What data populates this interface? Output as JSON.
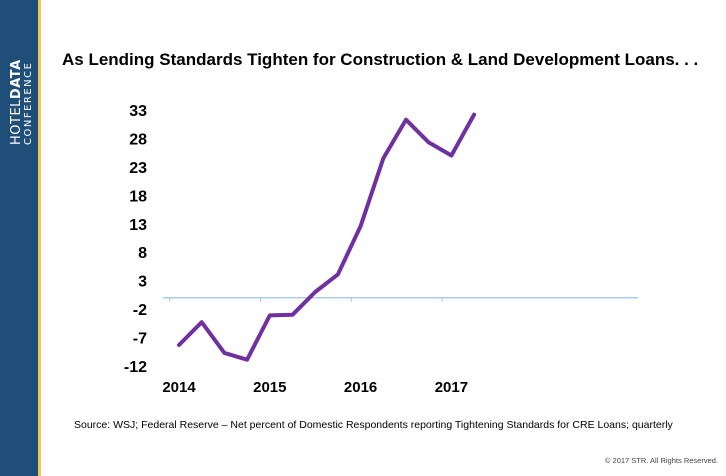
{
  "brand": {
    "line1_light": "HOTEL",
    "line1_bold": "DATA",
    "line2": "CONFERENCE"
  },
  "chart_data": {
    "type": "line",
    "title": "As Lending Standards Tighten for Construction & Land Development Loans. . .",
    "xlabel": "",
    "ylabel": "",
    "x": [
      "2014Q1",
      "2014Q2",
      "2014Q3",
      "2014Q4",
      "2015Q1",
      "2015Q2",
      "2015Q3",
      "2015Q4",
      "2016Q1",
      "2016Q2",
      "2016Q3",
      "2016Q4",
      "2017Q1",
      "2017Q2"
    ],
    "x_tick_labels": [
      "2014",
      "2015",
      "2016",
      "2017"
    ],
    "x_tick_positions": [
      "2014Q1",
      "2015Q1",
      "2016Q1",
      "2017Q1"
    ],
    "y_ticks": [
      33,
      28,
      23,
      18,
      13,
      8,
      3,
      -2,
      -7,
      -12
    ],
    "ylim": [
      -12,
      33
    ],
    "series": [
      {
        "values": [
          -8.3,
          -4.3,
          -9.7,
          -10.9,
          -3.1,
          -3.0,
          1.0,
          4.1,
          12.6,
          24.5,
          31.3,
          27.3,
          25.0,
          32.2
        ]
      }
    ],
    "line_color": "#7030a0",
    "zero_line_color": "#9dc3e6",
    "grid": false,
    "legend": "none"
  },
  "footer": {
    "source": "Source:  WSJ; Federal Reserve – Net percent of Domestic Respondents reporting Tightening Standards for CRE Loans; quarterly",
    "copyright": "© 2017 STR. All Rights Reserved."
  }
}
